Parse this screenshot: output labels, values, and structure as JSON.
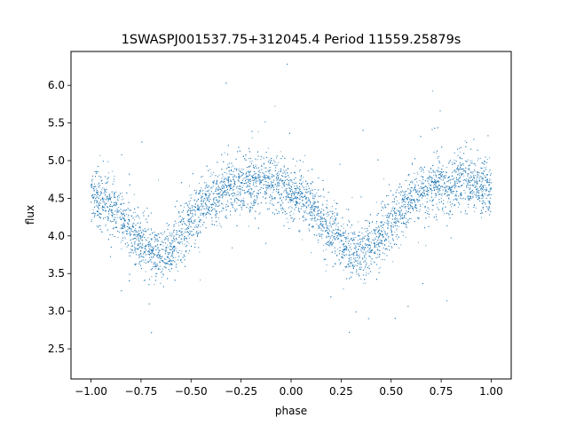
{
  "chart_data": {
    "type": "scatter",
    "title": "1SWASPJ001537.75+312045.4 Period 11559.25879s",
    "xlabel": "phase",
    "ylabel": "flux",
    "xlim": [
      -1.1,
      1.1
    ],
    "ylim": [
      2.1,
      6.45
    ],
    "xticks": [
      -1.0,
      -0.75,
      -0.5,
      -0.25,
      0.0,
      0.25,
      0.5,
      0.75,
      1.0
    ],
    "xtick_labels": [
      "−1.00",
      "−0.75",
      "−0.50",
      "−0.25",
      "0.00",
      "0.25",
      "0.50",
      "0.75",
      "1.00"
    ],
    "yticks": [
      2.5,
      3.0,
      3.5,
      4.0,
      4.5,
      5.0,
      5.5,
      6.0
    ],
    "ytick_labels": [
      "2.5",
      "3.0",
      "3.5",
      "4.0",
      "4.5",
      "5.0",
      "5.5",
      "6.0"
    ],
    "grid": false,
    "marker_color": "#1f77b4",
    "series": [
      {
        "x": [
          -1.0,
          -0.9,
          -0.8,
          -0.7,
          -0.65,
          -0.6,
          -0.5,
          -0.4,
          -0.3,
          -0.2,
          -0.15,
          -0.1,
          0.0,
          0.1,
          0.2,
          0.3,
          0.35,
          0.4,
          0.5,
          0.6,
          0.7,
          0.8,
          0.85,
          0.9,
          1.0
        ],
        "y": [
          4.55,
          4.4,
          4.05,
          3.8,
          3.75,
          3.85,
          4.2,
          4.5,
          4.65,
          4.7,
          4.72,
          4.7,
          4.6,
          4.4,
          4.05,
          3.8,
          3.75,
          3.85,
          4.2,
          4.5,
          4.65,
          4.7,
          4.72,
          4.7,
          4.6
        ],
        "scatter_spread": 0.18
      }
    ]
  }
}
